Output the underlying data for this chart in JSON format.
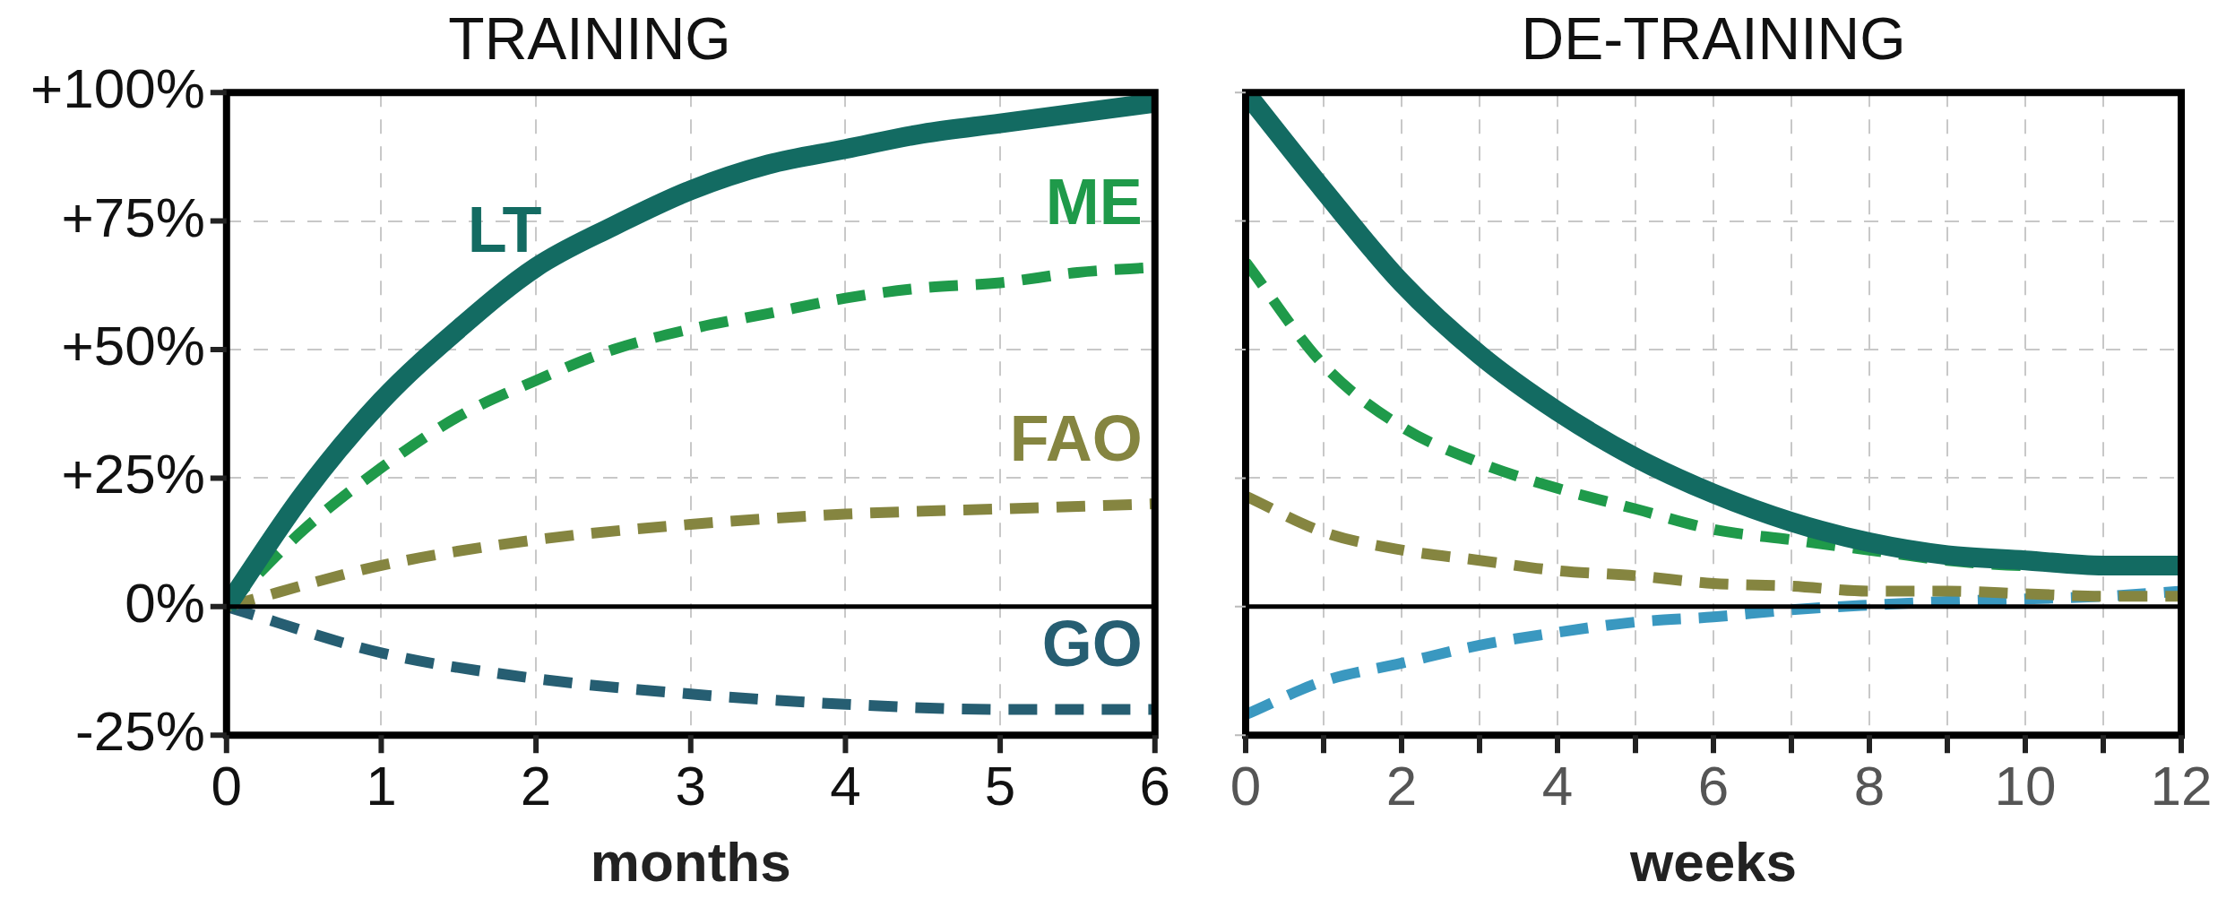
{
  "chart_data": [
    {
      "type": "line",
      "title": "TRAINING",
      "xlabel": "months",
      "xlim": [
        0,
        6
      ],
      "xticks": [
        0,
        1,
        2,
        3,
        4,
        5,
        6
      ],
      "ylim": [
        -25,
        100
      ],
      "yticks": [
        {
          "value": -25,
          "label": "-25%"
        },
        {
          "value": 0,
          "label": "0%"
        },
        {
          "value": 25,
          "label": "+25%"
        },
        {
          "value": 50,
          "label": "+50%"
        },
        {
          "value": 75,
          "label": "+75%"
        },
        {
          "value": 100,
          "label": "+100%"
        }
      ],
      "grid": true,
      "legend": false,
      "marker": "none",
      "ref_lines": [
        {
          "axis": "y",
          "value": 0,
          "color": "#000000"
        }
      ],
      "series": [
        {
          "name": "LT",
          "color": "#136b62",
          "line_style": "solid",
          "x": [
            0,
            0.5,
            1,
            1.5,
            2,
            2.5,
            3,
            3.5,
            4,
            4.5,
            5,
            5.5,
            6
          ],
          "values": [
            0,
            22,
            40,
            54,
            66,
            74,
            81,
            86,
            89,
            92,
            94,
            96,
            98
          ]
        },
        {
          "name": "ME",
          "color": "#1f9a4a",
          "line_style": "dashed",
          "x": [
            0,
            0.5,
            1,
            1.5,
            2,
            2.5,
            3,
            3.5,
            4,
            4.5,
            5,
            5.5,
            6
          ],
          "values": [
            0,
            15,
            27,
            37,
            44,
            50,
            54,
            57,
            60,
            62,
            63,
            65,
            66
          ]
        },
        {
          "name": "FAO",
          "color": "#858540",
          "line_style": "dashed",
          "x": [
            0,
            1,
            2,
            3,
            4,
            5,
            6
          ],
          "values": [
            0,
            8,
            13,
            16,
            18,
            19,
            20
          ]
        },
        {
          "name": "GO",
          "color": "#265e72",
          "line_style": "dashed",
          "x": [
            0,
            1,
            2,
            3,
            4,
            5,
            6
          ],
          "values": [
            0,
            -9,
            -14,
            -17,
            -19,
            -20,
            -20
          ]
        }
      ]
    },
    {
      "type": "line",
      "title": "DE-TRAINING",
      "xlabel": "weeks",
      "xlim": [
        0,
        12
      ],
      "xticks": [
        0,
        {
          "value": 1,
          "label": null
        },
        2,
        {
          "value": 3,
          "label": null
        },
        4,
        {
          "value": 5,
          "label": null
        },
        6,
        {
          "value": 7,
          "label": null
        },
        8,
        {
          "value": 9,
          "label": null
        },
        10,
        {
          "value": 11,
          "label": null
        },
        12
      ],
      "ylim": [
        -25,
        100
      ],
      "yticks": [
        -25,
        0,
        25,
        50,
        75,
        100
      ],
      "tick_labels": "x",
      "grid": true,
      "legend": false,
      "marker": "none",
      "ref_lines": [
        {
          "axis": "y",
          "value": 0,
          "color": "#000000"
        }
      ],
      "series": [
        {
          "color": "#136b62",
          "line_style": "solid",
          "x": [
            0,
            1,
            2,
            3,
            4,
            5,
            6,
            7,
            8,
            9,
            10,
            11,
            12
          ],
          "values": [
            100,
            81,
            63,
            49,
            38,
            29,
            22,
            16.5,
            12.5,
            10,
            9,
            8,
            8
          ]
        },
        {
          "color": "#1f9a4a",
          "line_style": "dashed",
          "x": [
            0,
            1,
            2,
            3,
            4,
            5,
            6,
            7,
            8,
            9,
            10,
            11,
            12
          ],
          "values": [
            67,
            47,
            35,
            28,
            23,
            19,
            15,
            13,
            11,
            9,
            8,
            8,
            7
          ]
        },
        {
          "color": "#858540",
          "line_style": "dashed",
          "x": [
            0,
            1,
            2,
            3,
            4,
            5,
            6,
            7,
            8,
            9,
            10,
            11,
            12
          ],
          "values": [
            21.5,
            14.5,
            11,
            9,
            7,
            6,
            4.5,
            4,
            3,
            3,
            2.5,
            2,
            2
          ]
        },
        {
          "color": "#3a98c0",
          "line_style": "dashed",
          "x": [
            0,
            1,
            2,
            3,
            4,
            5,
            6,
            7,
            8,
            9,
            10,
            11,
            12
          ],
          "values": [
            -21,
            -14.5,
            -11,
            -7.5,
            -5,
            -3,
            -2,
            -0.6,
            0.3,
            1,
            1.5,
            2,
            3
          ]
        }
      ]
    }
  ]
}
